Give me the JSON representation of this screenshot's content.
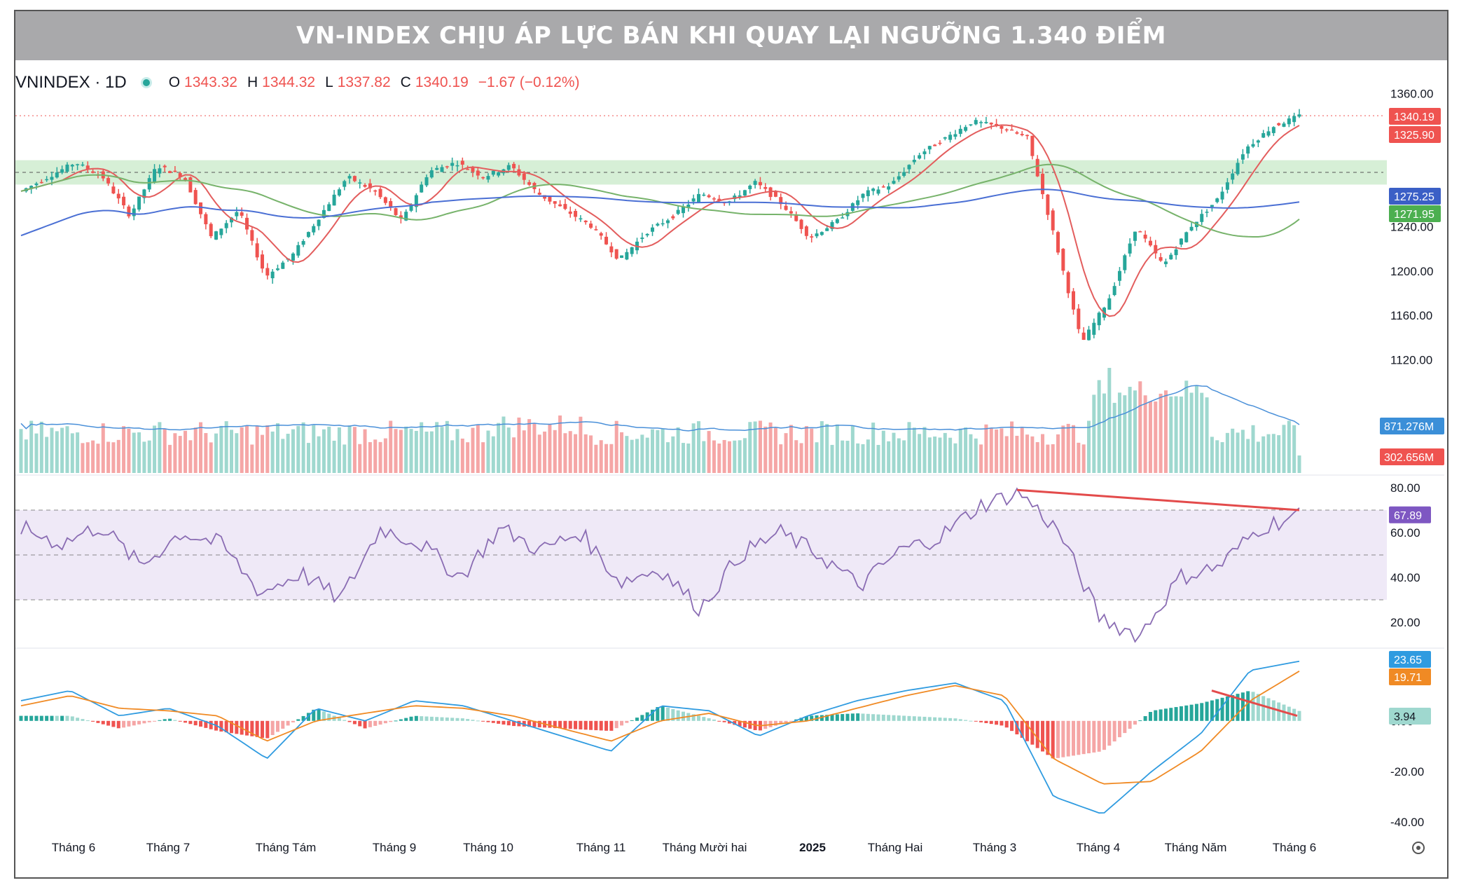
{
  "banner": {
    "title": "VN-INDEX CHỊU ÁP LỰC BÁN KHI QUAY LẠI NGƯỠNG 1.340 ĐIỂM"
  },
  "legend": {
    "symbol": "VNINDEX · 1D",
    "open_key": "O",
    "open": "1343.32",
    "high_key": "H",
    "high": "1344.32",
    "low_key": "L",
    "low": "1337.82",
    "close_key": "C",
    "close": "1340.19",
    "change": "−1.67 (−0.12%)"
  },
  "colors": {
    "up": "#26a69a",
    "down": "#ef5350",
    "ma_short": "#e35d5d",
    "ma_mid": "#77b36b",
    "ma_long": "#4a6fd4",
    "rsi": "#8a6cb3",
    "macd": "#2f9be0",
    "signal": "#f08a24",
    "zone": "#cfeccf",
    "rsi_band": "#efe9f7"
  },
  "chart_data": [
    {
      "type": "candlestick",
      "title": "",
      "ylim": [
        1100,
        1375
      ],
      "y_ticks": [
        "1360.00",
        "1240.00",
        "1200.00",
        "1160.00",
        "1120.00"
      ],
      "x_ticks": [
        "Tháng 6",
        "Tháng 7",
        "Tháng Tám",
        "Tháng 9",
        "Tháng 10",
        "Tháng 11",
        "Tháng Mười hai",
        "2025",
        "Tháng Hai",
        "Tháng 3",
        "Tháng 4",
        "Tháng Năm",
        "Tháng 6"
      ],
      "support_zone": [
        1278,
        1300
      ],
      "price_labels": [
        {
          "text": "1340.19",
          "value": 1340.19,
          "color": "#ef5350"
        },
        {
          "text": "1325.90",
          "value": 1325.9,
          "color": "#ef5350"
        },
        {
          "text": "1275.25",
          "value": 1275.25,
          "color": "#3b5fc6"
        },
        {
          "text": "1271.95",
          "value": 1271.95,
          "color": "#4caf50"
        }
      ],
      "anchors": [
        [
          "Tháng 6",
          1272
        ],
        [
          "Tháng 6",
          1285
        ],
        [
          "Tháng 6",
          1298
        ],
        [
          "Tháng 7",
          1285
        ],
        [
          "Tháng 7",
          1250
        ],
        [
          "Tháng 7",
          1295
        ],
        [
          "Tháng 7",
          1285
        ],
        [
          "Tháng Tám",
          1230
        ],
        [
          "Tháng Tám",
          1255
        ],
        [
          "Tháng Tám",
          1195
        ],
        [
          "Tháng Tám",
          1215
        ],
        [
          "Tháng 9",
          1250
        ],
        [
          "Tháng 9",
          1285
        ],
        [
          "Tháng 9",
          1272
        ],
        [
          "Tháng 9",
          1245
        ],
        [
          "Tháng 10",
          1290
        ],
        [
          "Tháng 10",
          1298
        ],
        [
          "Tháng 10",
          1285
        ],
        [
          "Tháng 10",
          1295
        ],
        [
          "Tháng 11",
          1270
        ],
        [
          "Tháng 11",
          1255
        ],
        [
          "Tháng 11",
          1240
        ],
        [
          "Tháng Mười hai",
          1210
        ],
        [
          "Tháng Mười hai",
          1235
        ],
        [
          "Tháng Mười hai",
          1250
        ],
        [
          "Tháng Mười hai",
          1270
        ],
        [
          "2025",
          1262
        ],
        [
          "2025",
          1280
        ],
        [
          "2025",
          1260
        ],
        [
          "2025",
          1230
        ],
        [
          "Tháng Hai",
          1245
        ],
        [
          "Tháng Hai",
          1270
        ],
        [
          "Tháng Hai",
          1278
        ],
        [
          "Tháng 3",
          1305
        ],
        [
          "Tháng 3",
          1320
        ],
        [
          "Tháng 3",
          1335
        ],
        [
          "Tháng 3",
          1330
        ],
        [
          "Tháng 4",
          1320
        ],
        [
          "Tháng 4",
          1230
        ],
        [
          "Tháng 4",
          1135
        ],
        [
          "Tháng 4",
          1175
        ],
        [
          "Tháng Năm",
          1240
        ],
        [
          "Tháng Năm",
          1205
        ],
        [
          "Tháng Năm",
          1240
        ],
        [
          "Tháng Năm",
          1265
        ],
        [
          "Tháng 6",
          1310
        ],
        [
          "Tháng 6",
          1330
        ],
        [
          "Tháng 6",
          1340
        ]
      ],
      "series": [
        {
          "name": "",
          "kind": "ma_short"
        },
        {
          "name": "",
          "kind": "ma_mid"
        },
        {
          "name": "",
          "kind": "ma_long"
        }
      ]
    },
    {
      "type": "bar",
      "title": "",
      "value_labels": [
        {
          "text": "871.276M",
          "color": "#3b8fd8"
        },
        {
          "text": "302.656M",
          "color": "#ef5350"
        }
      ]
    },
    {
      "type": "line",
      "title": "",
      "ylim": [
        10,
        85
      ],
      "y_ticks": [
        80,
        60,
        40,
        20
      ],
      "y_tick_labels": [
        "80.00",
        "60.00",
        "40.00",
        "20.00"
      ],
      "bands": [
        30,
        50,
        70
      ],
      "last_value": "67.89",
      "anchors": [
        [
          "Tháng 6",
          62
        ],
        [
          "Tháng 6",
          55
        ],
        [
          "Tháng 6",
          63
        ],
        [
          "Tháng 7",
          45
        ],
        [
          "Tháng 7",
          60
        ],
        [
          "Tháng 7",
          55
        ],
        [
          "Tháng Tám",
          33
        ],
        [
          "Tháng Tám",
          42
        ],
        [
          "Tháng Tám",
          30
        ],
        [
          "Tháng 9",
          62
        ],
        [
          "Tháng 9",
          55
        ],
        [
          "Tháng 9",
          40
        ],
        [
          "Tháng 10",
          62
        ],
        [
          "Tháng 10",
          52
        ],
        [
          "Tháng 10",
          60
        ],
        [
          "Tháng 11",
          38
        ],
        [
          "Tháng 11",
          44
        ],
        [
          "Tháng Mười hai",
          26
        ],
        [
          "Tháng Mười hai",
          50
        ],
        [
          "Tháng Mười hai",
          60
        ],
        [
          "2025",
          50
        ],
        [
          "2025",
          36
        ],
        [
          "Tháng Hai",
          52
        ],
        [
          "Tháng Hai",
          58
        ],
        [
          "Tháng 3",
          72
        ],
        [
          "Tháng 3",
          78
        ],
        [
          "Tháng 4",
          60
        ],
        [
          "Tháng 4",
          22
        ],
        [
          "Tháng 4",
          14
        ],
        [
          "Tháng Năm",
          40
        ],
        [
          "Tháng Năm",
          45
        ],
        [
          "Tháng 6",
          62
        ],
        [
          "Tháng 6",
          68
        ]
      ]
    },
    {
      "type": "line",
      "title": "",
      "ylim": [
        -42,
        28
      ],
      "y_ticks": [
        0,
        -20,
        -40
      ],
      "y_tick_labels": [
        "0.00",
        "-20.00",
        "-40.00"
      ],
      "values": [
        {
          "text": "23.65",
          "color": "#2f9be0"
        },
        {
          "text": "19.71",
          "color": "#f08a24"
        },
        {
          "text": "3.94",
          "color": "#9fd8cf"
        }
      ],
      "macd_anchors": [
        [
          "Tháng 6",
          8
        ],
        [
          "Tháng 6",
          12
        ],
        [
          "Tháng 7",
          2
        ],
        [
          "Tháng 7",
          5
        ],
        [
          "Tháng Tám",
          -2
        ],
        [
          "Tháng Tám",
          -15
        ],
        [
          "Tháng 9",
          5
        ],
        [
          "Tháng 9",
          0
        ],
        [
          "Tháng 10",
          8
        ],
        [
          "Tháng 10",
          6
        ],
        [
          "Tháng 11",
          0
        ],
        [
          "Tháng 11",
          -6
        ],
        [
          "Tháng Mười hai",
          -12
        ],
        [
          "Tháng Mười hai",
          6
        ],
        [
          "2025",
          4
        ],
        [
          "2025",
          -6
        ],
        [
          "Tháng Hai",
          2
        ],
        [
          "Tháng Hai",
          8
        ],
        [
          "Tháng 3",
          12
        ],
        [
          "Tháng 3",
          15
        ],
        [
          "Tháng 4",
          8
        ],
        [
          "Tháng 4",
          -30
        ],
        [
          "Tháng 4",
          -37
        ],
        [
          "Tháng Năm",
          -20
        ],
        [
          "Tháng Năm",
          -5
        ],
        [
          "Tháng 6",
          20
        ],
        [
          "Tháng 6",
          23.65
        ]
      ],
      "signal_anchors": [
        [
          "Tháng 6",
          6
        ],
        [
          "Tháng 6",
          10
        ],
        [
          "Tháng 7",
          5
        ],
        [
          "Tháng 7",
          4
        ],
        [
          "Tháng Tám",
          2
        ],
        [
          "Tháng Tám",
          -8
        ],
        [
          "Tháng 9",
          0
        ],
        [
          "Tháng 9",
          3
        ],
        [
          "Tháng 10",
          6
        ],
        [
          "Tháng 10",
          5
        ],
        [
          "Tháng 11",
          2
        ],
        [
          "Tháng 11",
          -3
        ],
        [
          "Tháng Mười hai",
          -8
        ],
        [
          "Tháng Mười hai",
          0
        ],
        [
          "2025",
          3
        ],
        [
          "2025",
          -2
        ],
        [
          "Tháng Hai",
          0
        ],
        [
          "Tháng Hai",
          5
        ],
        [
          "Tháng 3",
          10
        ],
        [
          "Tháng 3",
          14
        ],
        [
          "Tháng 4",
          10
        ],
        [
          "Tháng 4",
          -15
        ],
        [
          "Tháng 4",
          -25
        ],
        [
          "Tháng Năm",
          -24
        ],
        [
          "Tháng Năm",
          -12
        ],
        [
          "Tháng 6",
          8
        ],
        [
          "Tháng 6",
          19.71
        ]
      ]
    }
  ]
}
